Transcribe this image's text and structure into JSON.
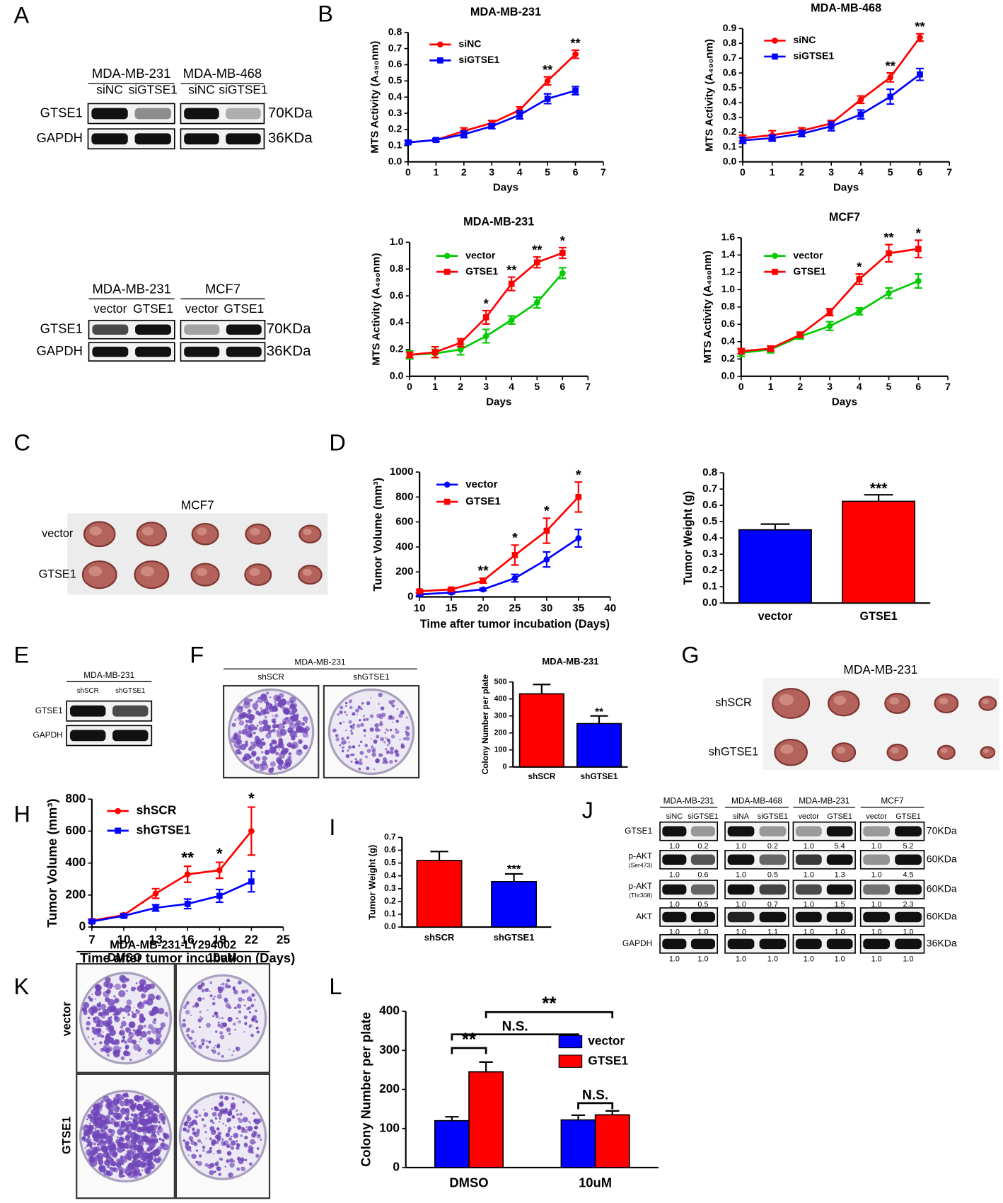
{
  "figure": {
    "panel_letters": [
      "A",
      "B",
      "C",
      "D",
      "E",
      "F",
      "G",
      "H",
      "I",
      "J",
      "K",
      "L"
    ]
  },
  "blots": [
    {
      "groups": [
        {
          "cell": "MDA-MB-231",
          "lanes": [
            "siNC",
            "siGTSE1"
          ]
        },
        {
          "cell": "MDA-MB-468",
          "lanes": [
            "siNC",
            "siGTSE1"
          ]
        }
      ],
      "rows": [
        {
          "label": "GTSE1"
        },
        {
          "label": "GAPDH"
        }
      ],
      "sizes": [
        "70KDa",
        "36KDa"
      ]
    },
    {
      "groups": [
        {
          "cell": "MDA-MB-231",
          "lanes": [
            "vector",
            "GTSE1"
          ]
        },
        {
          "cell": "MCF7",
          "lanes": [
            "vector",
            "GTSE1"
          ]
        }
      ],
      "rows": [
        {
          "label": "GTSE1"
        },
        {
          "label": "GAPDH"
        }
      ],
      "sizes": [
        "70KDa",
        "36KDa"
      ]
    },
    {
      "groups": [
        {
          "cell": "MDA-MB-231",
          "lanes": [
            "shSCR",
            "shGTSE1"
          ]
        }
      ],
      "rows": [
        {
          "label": "GTSE1"
        },
        {
          "label": "GAPDH"
        }
      ]
    },
    {
      "groups": [
        {
          "cell": "MDA-MB-231",
          "lanes": [
            "siNC",
            "siGTSE1"
          ]
        },
        {
          "cell": "MDA-MB-468",
          "lanes": [
            "siNA",
            "siGTSE1"
          ]
        },
        {
          "cell": "MDA-MB-231",
          "lanes": [
            "vector",
            "GTSE1"
          ]
        },
        {
          "cell": "MCF7",
          "lanes": [
            "vector",
            "GTSE1"
          ]
        }
      ],
      "rows": [
        {
          "label": "GTSE1",
          "quant": [
            [
              "1.0",
              "0.2"
            ],
            [
              "1.0",
              "0.2"
            ],
            [
              "1.0",
              "5.4"
            ],
            [
              "1.0",
              "5.2"
            ]
          ]
        },
        {
          "label": "p-AKT",
          "sublabel": "(Ser473)",
          "quant": [
            [
              "1.0",
              "0.6"
            ],
            [
              "1.0",
              "0.5"
            ],
            [
              "1.0",
              "1.3"
            ],
            [
              "1.0",
              "4.5"
            ]
          ]
        },
        {
          "label": "p-AKT",
          "sublabel": "(Thr308)",
          "quant": [
            [
              "1.0",
              "0.5"
            ],
            [
              "1.0",
              "0.7"
            ],
            [
              "1.0",
              "1.5"
            ],
            [
              "1.0",
              "2.3"
            ]
          ]
        },
        {
          "label": "AKT",
          "quant": [
            [
              "1.0",
              "1.0"
            ],
            [
              "1.0",
              "1.1"
            ],
            [
              "1.0",
              "1.0"
            ],
            [
              "1.0",
              "1.0"
            ]
          ]
        },
        {
          "label": "GAPDH",
          "quant": [
            [
              "1.0",
              "1.0"
            ],
            [
              "1.0",
              "1.0"
            ],
            [
              "1.0",
              "1.0"
            ],
            [
              "1.0",
              "1.0"
            ]
          ]
        }
      ],
      "sizes": [
        "70KDa",
        "60KDa",
        "60KDa",
        "60KDa",
        "36KDa"
      ]
    }
  ],
  "photos": [
    {
      "title": "MCF7",
      "rows": [
        "vector",
        "GTSE1"
      ]
    },
    {
      "title": "MDA-MB-231",
      "rows": [
        "shSCR",
        "shGTSE1"
      ]
    }
  ],
  "plates_f": {
    "title": "MDA-MB-231",
    "columns": [
      "shSCR",
      "shGTSE1"
    ]
  },
  "plates_k": {
    "title": "MDA-MB-231-LY294002",
    "columns": [
      "DMSO",
      "10uM"
    ],
    "rows": [
      "vector",
      "GTSE1"
    ]
  },
  "chart_data": [
    {
      "type": "line",
      "title": "MDA-MB-231",
      "xlabel": "Days",
      "ylabel": "MTS Activity (A₄₉₀nm)",
      "x": [
        0,
        1,
        2,
        3,
        4,
        5,
        6
      ],
      "xlim": [
        0,
        7
      ],
      "xticks": [
        0,
        1,
        2,
        3,
        4,
        5,
        6,
        7
      ],
      "ylim": [
        0,
        0.8
      ],
      "yticks": [
        {
          "value": 0,
          "label": "0.0"
        },
        0.1,
        0.2,
        0.3,
        0.4,
        0.5,
        0.6,
        0.7,
        0.8
      ],
      "legend": "upper left",
      "series": [
        {
          "name": "siNC",
          "color": "#ff0000",
          "marker": "circle",
          "values": [
            0.12,
            0.135,
            0.19,
            0.24,
            0.32,
            0.5,
            0.665
          ],
          "errors": [
            0.01,
            0.01,
            0.02,
            0.015,
            0.02,
            0.025,
            0.025
          ]
        },
        {
          "name": "siGTSE1",
          "color": "#0000ff",
          "marker": "square",
          "values": [
            0.12,
            0.135,
            0.17,
            0.22,
            0.29,
            0.39,
            0.44
          ],
          "errors": [
            0.01,
            0.01,
            0.02,
            0.015,
            0.025,
            0.03,
            0.025
          ]
        }
      ],
      "annotations": [
        {
          "text": "**",
          "x": 5
        },
        {
          "text": "**",
          "x": 6
        }
      ]
    },
    {
      "type": "line",
      "title": "MDA-MB-468",
      "xlabel": "Days",
      "ylabel": "MTS Activity (A₄₉₀nm)",
      "x": [
        0,
        1,
        2,
        3,
        4,
        5,
        6
      ],
      "xlim": [
        0,
        7
      ],
      "xticks": [
        0,
        1,
        2,
        3,
        4,
        5,
        6,
        7
      ],
      "ylim": [
        0,
        0.9
      ],
      "yticks": [
        {
          "value": 0,
          "label": "0.0"
        },
        0.1,
        0.2,
        0.3,
        0.4,
        0.5,
        0.6,
        0.7,
        0.8,
        0.9
      ],
      "legend": "upper left",
      "series": [
        {
          "name": "siNC",
          "color": "#ff0000",
          "marker": "circle",
          "values": [
            0.16,
            0.18,
            0.21,
            0.26,
            0.42,
            0.57,
            0.84
          ],
          "errors": [
            0.02,
            0.03,
            0.02,
            0.02,
            0.025,
            0.03,
            0.025
          ]
        },
        {
          "name": "siGTSE1",
          "color": "#0000ff",
          "marker": "square",
          "values": [
            0.145,
            0.16,
            0.19,
            0.24,
            0.32,
            0.44,
            0.59
          ],
          "errors": [
            0.02,
            0.02,
            0.02,
            0.03,
            0.03,
            0.05,
            0.04
          ]
        }
      ],
      "annotations": [
        {
          "text": "**",
          "x": 5
        },
        {
          "text": "**",
          "x": 6
        }
      ]
    },
    {
      "type": "line",
      "title": "MDA-MB-231",
      "xlabel": "Days",
      "ylabel": "MTS Activity (A₄₉₀nm)",
      "x": [
        0,
        1,
        2,
        3,
        4,
        5,
        6
      ],
      "xlim": [
        0,
        7
      ],
      "xticks": [
        0,
        1,
        2,
        3,
        4,
        5,
        6,
        7
      ],
      "ylim": [
        0,
        1
      ],
      "yticks": [
        {
          "value": 0,
          "label": "0.0"
        },
        0.2,
        0.4,
        0.6,
        0.8,
        {
          "value": 1,
          "label": "1.0"
        }
      ],
      "legend": "upper left",
      "series": [
        {
          "name": "vector",
          "color": "#00cc00",
          "marker": "circle",
          "values": [
            0.16,
            0.17,
            0.2,
            0.3,
            0.42,
            0.55,
            0.77
          ],
          "errors": [
            0.03,
            0.03,
            0.04,
            0.05,
            0.03,
            0.04,
            0.04
          ]
        },
        {
          "name": "GTSE1",
          "color": "#ff0000",
          "marker": "square",
          "values": [
            0.16,
            0.18,
            0.25,
            0.44,
            0.69,
            0.85,
            0.92
          ],
          "errors": [
            0.02,
            0.04,
            0.03,
            0.05,
            0.05,
            0.04,
            0.04
          ]
        }
      ],
      "annotations": [
        {
          "text": "*",
          "x": 3
        },
        {
          "text": "**",
          "x": 4
        },
        {
          "text": "**",
          "x": 5
        },
        {
          "text": "*",
          "x": 6
        }
      ]
    },
    {
      "type": "line",
      "title": "MCF7",
      "xlabel": "Days",
      "ylabel": "MTS Activity (A₄₉₀nm)",
      "x": [
        0,
        1,
        2,
        3,
        4,
        5,
        6
      ],
      "xlim": [
        0,
        7
      ],
      "xticks": [
        0,
        1,
        2,
        3,
        4,
        5,
        6,
        7
      ],
      "ylim": [
        0,
        1.6
      ],
      "yticks": [
        {
          "value": 0,
          "label": "0.0"
        },
        0.2,
        0.4,
        0.6,
        0.8,
        {
          "value": 1,
          "label": "1.0"
        },
        1.2,
        1.4,
        1.6
      ],
      "legend": "upper left",
      "series": [
        {
          "name": "vector",
          "color": "#00cc00",
          "marker": "circle",
          "values": [
            0.27,
            0.31,
            0.46,
            0.58,
            0.75,
            0.96,
            1.1
          ],
          "errors": [
            0.04,
            0.04,
            0.03,
            0.05,
            0.04,
            0.06,
            0.08
          ]
        },
        {
          "name": "GTSE1",
          "color": "#ff0000",
          "marker": "square",
          "values": [
            0.29,
            0.32,
            0.48,
            0.74,
            1.12,
            1.42,
            1.47
          ],
          "errors": [
            0.03,
            0.03,
            0.03,
            0.04,
            0.06,
            0.1,
            0.1
          ]
        }
      ],
      "annotations": [
        {
          "text": "*",
          "x": 4
        },
        {
          "text": "**",
          "x": 5
        },
        {
          "text": "*",
          "x": 6
        }
      ]
    },
    {
      "type": "line",
      "xlabel": "Time after tumor incubation (Days)",
      "ylabel": "Tumor Volume (mm³)",
      "x": [
        10,
        15,
        20,
        25,
        30,
        35
      ],
      "xlim": [
        10,
        40
      ],
      "xticks": [
        10,
        15,
        20,
        25,
        30,
        35,
        40
      ],
      "ylim": [
        0,
        1000
      ],
      "yticks": [
        0,
        200,
        400,
        600,
        800,
        1000
      ],
      "legend": "upper left",
      "series": [
        {
          "name": "vector",
          "color": "#0000ff",
          "marker": "circle",
          "values": [
            20,
            35,
            60,
            150,
            300,
            470
          ],
          "errors": [
            10,
            10,
            10,
            30,
            60,
            70
          ]
        },
        {
          "name": "GTSE1",
          "color": "#ff0000",
          "marker": "square",
          "values": [
            45,
            60,
            130,
            335,
            530,
            800
          ],
          "errors": [
            10,
            10,
            20,
            80,
            100,
            120
          ]
        }
      ],
      "annotations": [
        {
          "text": "**",
          "x": 20
        },
        {
          "text": "*",
          "x": 25
        },
        {
          "text": "*",
          "x": 30
        },
        {
          "text": "*",
          "x": 35
        }
      ]
    },
    {
      "type": "bar",
      "ylabel": "Tumor Weight (g)",
      "categories": [
        "vector",
        "GTSE1"
      ],
      "values": [
        0.45,
        0.625
      ],
      "errors": [
        0.035,
        0.04
      ],
      "colors": [
        "#0000ff",
        "#ff0000"
      ],
      "ylim": [
        0,
        0.8
      ],
      "yticks": [
        {
          "value": 0,
          "label": "0.0"
        },
        0.1,
        0.2,
        0.3,
        0.4,
        0.5,
        0.6,
        0.7,
        0.8
      ],
      "annotations": [
        {
          "text": "***",
          "x": "GTSE1"
        }
      ]
    },
    {
      "type": "bar",
      "title": "MDA-MB-231",
      "ylabel": "Colony Number per plate",
      "categories": [
        "shSCR",
        "shGTSE1"
      ],
      "values": [
        430,
        255
      ],
      "errors": [
        55,
        45
      ],
      "colors": [
        "#ff0000",
        "#0000ff"
      ],
      "ylim": [
        0,
        500
      ],
      "yticks": [
        0,
        100,
        200,
        300,
        400,
        500
      ],
      "annotations": [
        {
          "text": "**",
          "x": "shGTSE1"
        }
      ]
    },
    {
      "type": "line",
      "xlabel": "Time after tumor incubation (Days)",
      "ylabel": "Tumor Volume (mm³)",
      "x": [
        7,
        10,
        13,
        16,
        19,
        22
      ],
      "xlim": [
        7,
        25
      ],
      "xticks": [
        7,
        10,
        13,
        16,
        19,
        22,
        25
      ],
      "ylim": [
        0,
        800
      ],
      "yticks": [
        0,
        200,
        400,
        600,
        800
      ],
      "legend": "upper left",
      "series": [
        {
          "name": "shSCR",
          "color": "#ff0000",
          "marker": "circle",
          "values": [
            40,
            75,
            210,
            330,
            355,
            600
          ],
          "errors": [
            10,
            10,
            30,
            50,
            50,
            150
          ]
        },
        {
          "name": "shGTSE1",
          "color": "#0000ff",
          "marker": "square",
          "values": [
            35,
            70,
            120,
            145,
            195,
            285
          ],
          "errors": [
            10,
            10,
            20,
            30,
            40,
            65
          ]
        }
      ],
      "annotations": [
        {
          "text": "**",
          "x": 16
        },
        {
          "text": "*",
          "x": 19
        },
        {
          "text": "*",
          "x": 22
        }
      ]
    },
    {
      "type": "bar",
      "ylabel": "Tumor Weight (g)",
      "categories": [
        "shSCR",
        "shGTSE1"
      ],
      "values": [
        0.52,
        0.355
      ],
      "errors": [
        0.07,
        0.06
      ],
      "colors": [
        "#ff0000",
        "#0000ff"
      ],
      "ylim": [
        0,
        0.7
      ],
      "yticks": [
        {
          "value": 0,
          "label": "0.0"
        },
        0.1,
        0.2,
        0.3,
        0.4,
        0.5,
        0.6,
        0.7
      ],
      "annotations": [
        {
          "text": "***",
          "x": "shGTSE1"
        }
      ]
    },
    {
      "type": "bar",
      "ylabel": "Colony Number per plate",
      "categories": [
        "DMSO",
        "10uM"
      ],
      "legend": "upper right",
      "series": [
        {
          "name": "vector",
          "color": "#0000ff",
          "values": [
            120,
            122
          ],
          "errors": [
            10,
            12
          ]
        },
        {
          "name": "GTSE1",
          "color": "#ff0000",
          "values": [
            245,
            135
          ],
          "errors": [
            25,
            10
          ]
        }
      ],
      "ylim": [
        0,
        400
      ],
      "yticks": [
        0,
        100,
        200,
        300,
        400
      ],
      "brackets": [
        {
          "text": "**",
          "from": {
            "category": "DMSO",
            "series": "vector"
          },
          "to": {
            "category": "DMSO",
            "series": "GTSE1"
          },
          "y": 306
        },
        {
          "text": "N.S.",
          "from": {
            "category": "DMSO",
            "series": "vector"
          },
          "to": {
            "category": "10uM",
            "series": "vector"
          },
          "y": 341
        },
        {
          "text": "**",
          "from": {
            "category": "DMSO",
            "series": "GTSE1"
          },
          "to": {
            "category": "10uM",
            "series": "GTSE1"
          },
          "y": 398
        },
        {
          "text": "N.S.",
          "from": {
            "category": "10uM",
            "series": "vector"
          },
          "to": {
            "category": "10uM",
            "series": "GTSE1"
          },
          "y": 165
        }
      ]
    }
  ]
}
